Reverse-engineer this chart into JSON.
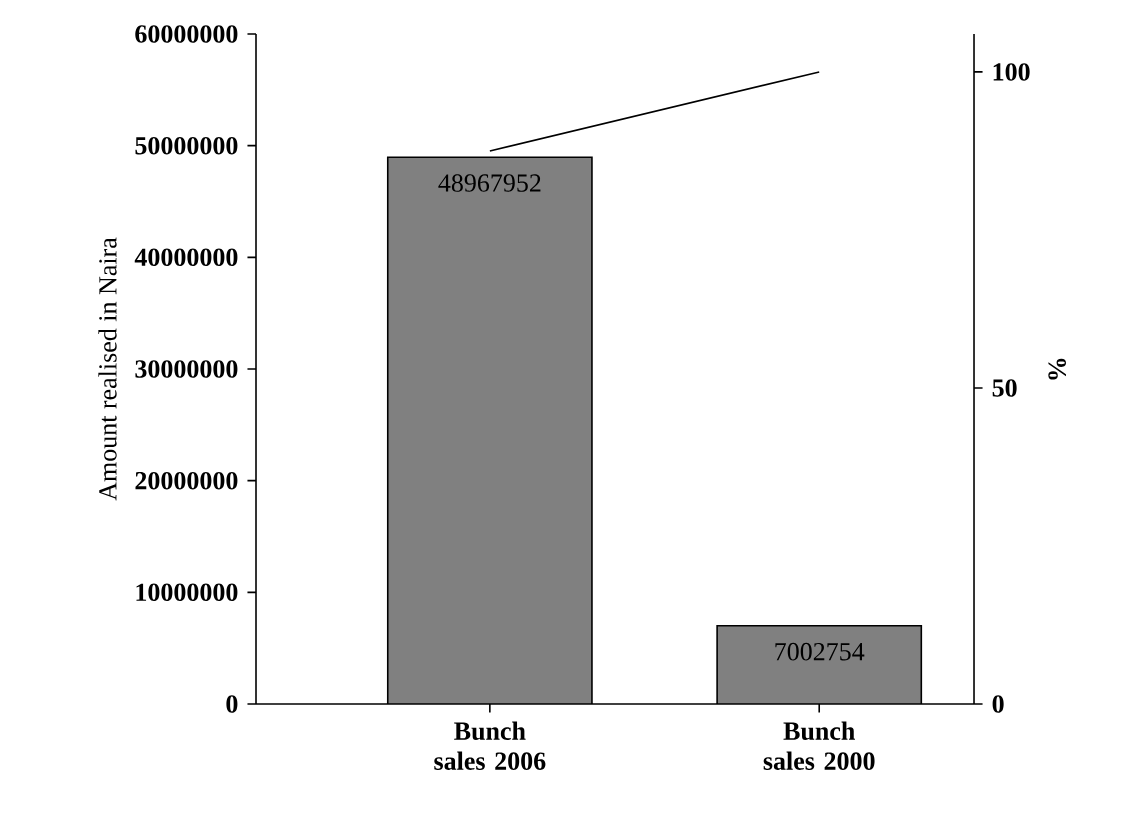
{
  "chart_data": {
    "type": "bar",
    "categories": [
      "Bunch sales 2006",
      "Bunch sales 2000"
    ],
    "ylabel": "Amount realised in Naira",
    "y2label": "%",
    "ylim": [
      0,
      60000000
    ],
    "yticks": [
      0,
      10000000,
      20000000,
      30000000,
      40000000,
      50000000,
      60000000
    ],
    "y2lim": [
      0,
      106
    ],
    "y2ticks": [
      0,
      50,
      100
    ],
    "series": [
      {
        "color": "#808080",
        "values": [
          48967952,
          7002754
        ],
        "value_labels": [
          "48967952",
          "7002754"
        ]
      },
      {
        "type": "line",
        "axis": "y2",
        "color": "#000000",
        "values": [
          87.5,
          100
        ]
      }
    ]
  }
}
